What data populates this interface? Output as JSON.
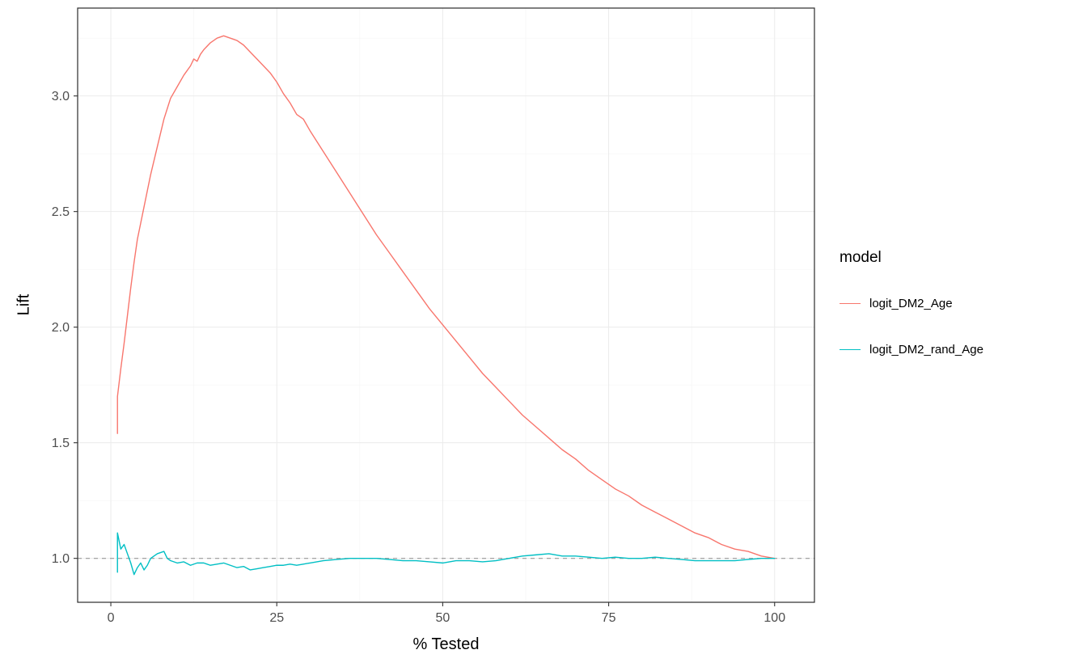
{
  "chart_data": {
    "type": "line",
    "title": "",
    "xlabel": "% Tested",
    "ylabel": "Lift",
    "xlim": [
      -5,
      106
    ],
    "ylim": [
      0.81,
      3.38
    ],
    "x_tick_values": [
      0,
      25,
      50,
      75,
      100
    ],
    "x_tick_labels": [
      "0",
      "25",
      "50",
      "75",
      "100"
    ],
    "y_tick_values": [
      1.0,
      1.5,
      2.0,
      2.5,
      3.0
    ],
    "y_tick_labels": [
      "1.0",
      "1.5",
      "2.0",
      "2.5",
      "3.0"
    ],
    "x_minor": [
      12.5,
      37.5,
      62.5,
      87.5
    ],
    "y_minor": [
      1.25,
      1.75,
      2.25,
      2.75,
      3.25
    ],
    "grid": true,
    "grid_major_color": "#EBEBEB",
    "grid_minor_color": "#F5F5F5",
    "panel_border_color": "#2B2B2B",
    "tick_color": "#333333",
    "tick_label_color": "#4D4D4D",
    "legend": {
      "title": "model",
      "position": "right"
    },
    "reference_line": {
      "y": 1.0,
      "style": "dashed",
      "color": "#999999"
    },
    "series": [
      {
        "name": "logit_DM2_Age",
        "color": "#F8766D",
        "x": [
          1,
          1,
          1.5,
          2,
          2.5,
          3,
          3.5,
          4,
          4.5,
          5,
          6,
          7,
          8,
          9,
          10,
          11,
          12,
          12.5,
          13,
          13.5,
          14,
          15,
          16,
          17,
          18,
          19,
          20,
          21,
          22,
          23,
          24,
          25,
          26,
          27,
          28,
          29,
          30,
          32,
          34,
          36,
          38,
          40,
          42,
          44,
          46,
          48,
          50,
          52,
          54,
          56,
          58,
          60,
          62,
          64,
          66,
          68,
          70,
          72,
          74,
          76,
          78,
          80,
          82,
          84,
          86,
          88,
          90,
          92,
          94,
          96,
          98,
          100
        ],
        "y": [
          1.54,
          1.7,
          1.82,
          1.93,
          2.05,
          2.17,
          2.28,
          2.38,
          2.45,
          2.52,
          2.66,
          2.78,
          2.9,
          2.99,
          3.04,
          3.09,
          3.13,
          3.16,
          3.15,
          3.18,
          3.2,
          3.23,
          3.25,
          3.26,
          3.25,
          3.24,
          3.22,
          3.19,
          3.16,
          3.13,
          3.1,
          3.06,
          3.01,
          2.97,
          2.92,
          2.9,
          2.85,
          2.76,
          2.67,
          2.58,
          2.49,
          2.4,
          2.32,
          2.24,
          2.16,
          2.08,
          2.01,
          1.94,
          1.87,
          1.8,
          1.74,
          1.68,
          1.62,
          1.57,
          1.52,
          1.47,
          1.43,
          1.38,
          1.34,
          1.3,
          1.27,
          1.23,
          1.2,
          1.17,
          1.14,
          1.11,
          1.09,
          1.06,
          1.04,
          1.03,
          1.01,
          1.0
        ]
      },
      {
        "name": "logit_DM2_rand_Age",
        "color": "#00BFC4",
        "x": [
          1,
          1,
          1.5,
          2,
          2.5,
          3,
          3.5,
          4,
          4.5,
          5,
          5.5,
          6,
          7,
          8,
          8.5,
          9,
          10,
          11,
          12,
          13,
          14,
          15,
          16,
          17,
          18,
          19,
          20,
          21,
          22,
          23,
          24,
          25,
          26,
          27,
          28,
          29,
          30,
          32,
          34,
          36,
          38,
          40,
          42,
          44,
          46,
          48,
          50,
          52,
          54,
          56,
          58,
          60,
          62,
          64,
          66,
          68,
          70,
          72,
          74,
          76,
          78,
          80,
          82,
          84,
          86,
          88,
          90,
          92,
          94,
          96,
          98,
          100
        ],
        "y": [
          0.94,
          1.11,
          1.04,
          1.06,
          1.02,
          0.98,
          0.93,
          0.96,
          0.98,
          0.95,
          0.97,
          1.0,
          1.02,
          1.03,
          1.0,
          0.99,
          0.98,
          0.985,
          0.97,
          0.98,
          0.98,
          0.97,
          0.975,
          0.98,
          0.97,
          0.96,
          0.965,
          0.95,
          0.955,
          0.96,
          0.965,
          0.97,
          0.97,
          0.975,
          0.97,
          0.975,
          0.98,
          0.99,
          0.995,
          1.0,
          1.0,
          1.0,
          0.995,
          0.99,
          0.99,
          0.985,
          0.98,
          0.99,
          0.99,
          0.985,
          0.99,
          1.0,
          1.01,
          1.015,
          1.02,
          1.01,
          1.01,
          1.005,
          1.0,
          1.005,
          1.0,
          1.0,
          1.005,
          1.0,
          0.995,
          0.99,
          0.99,
          0.99,
          0.99,
          0.995,
          1.0,
          1.0
        ]
      }
    ]
  }
}
